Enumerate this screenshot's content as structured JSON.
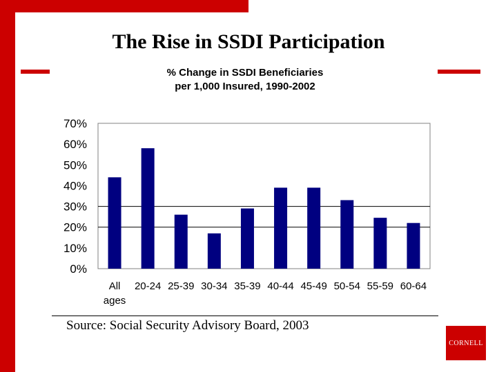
{
  "slide": {
    "title": "The Rise in SSDI Participation",
    "source": "Source: Social Security Advisory Board, 2003",
    "logo_text": "CORNELL",
    "accent_color": "#cc0000"
  },
  "chart_data": {
    "type": "bar",
    "title_line1": "% Change in SSDI Beneficiaries",
    "title_line2": "per 1,000 Insured, 1990-2002",
    "categories": [
      [
        "All",
        "ages"
      ],
      [
        "20-24"
      ],
      [
        "25-39"
      ],
      [
        "30-34"
      ],
      [
        "35-39"
      ],
      [
        "40-44"
      ],
      [
        "45-49"
      ],
      [
        "50-54"
      ],
      [
        "55-59"
      ],
      [
        "60-64"
      ]
    ],
    "values": [
      44,
      58,
      26,
      17,
      29,
      39,
      39,
      33,
      24.5,
      22
    ],
    "yticks": [
      "0%",
      "10%",
      "20%",
      "30%",
      "40%",
      "50%",
      "60%",
      "70%"
    ],
    "ylim": [
      0,
      70
    ],
    "bar_color": "#000080",
    "gridlines_at": [
      20,
      30
    ],
    "xlabel": "",
    "ylabel": ""
  }
}
